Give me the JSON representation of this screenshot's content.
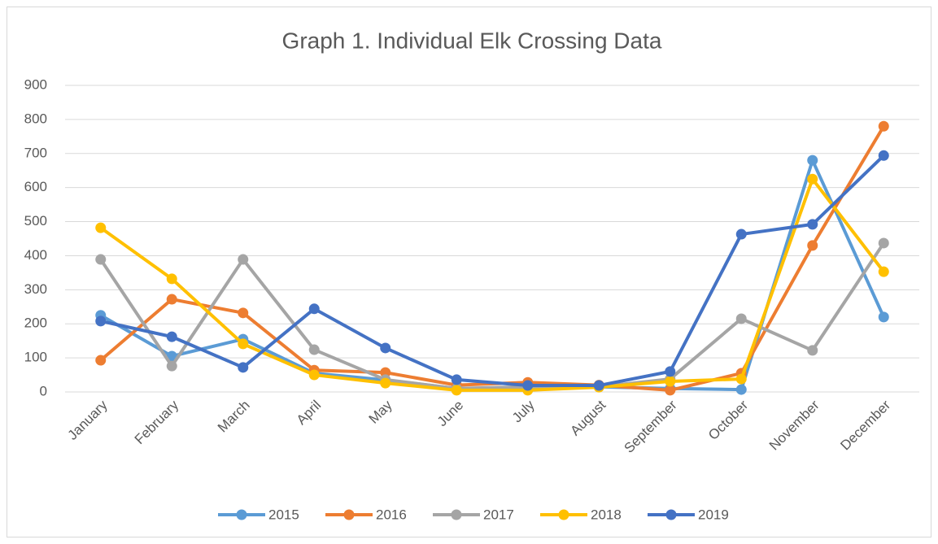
{
  "chart_data": {
    "type": "line",
    "title": "Graph 1. Individual Elk Crossing Data",
    "categories": [
      "January",
      "February",
      "March",
      "April",
      "May",
      "June",
      "July",
      "August",
      "September",
      "October",
      "November",
      "December"
    ],
    "series": [
      {
        "name": "2015",
        "color": "#5B9BD5",
        "values": [
          225,
          105,
          155,
          55,
          35,
          10,
          12,
          15,
          10,
          7,
          680,
          220
        ]
      },
      {
        "name": "2016",
        "color": "#ED7D31",
        "values": [
          93,
          272,
          232,
          64,
          57,
          20,
          28,
          20,
          5,
          55,
          430,
          780
        ]
      },
      {
        "name": "2017",
        "color": "#A5A5A5",
        "values": [
          389,
          76,
          389,
          124,
          36,
          10,
          15,
          15,
          38,
          215,
          122,
          437
        ]
      },
      {
        "name": "2018",
        "color": "#FFC000",
        "values": [
          482,
          332,
          141,
          50,
          26,
          5,
          5,
          14,
          31,
          38,
          625,
          353
        ]
      },
      {
        "name": "2019",
        "color": "#4472C4",
        "values": [
          208,
          162,
          72,
          244,
          129,
          36,
          19,
          19,
          60,
          463,
          492,
          694
        ]
      }
    ],
    "ylim": [
      0,
      900
    ],
    "yticks": [
      0,
      100,
      200,
      300,
      400,
      500,
      600,
      700,
      800,
      900
    ],
    "grid": true,
    "legend": "bottom"
  }
}
